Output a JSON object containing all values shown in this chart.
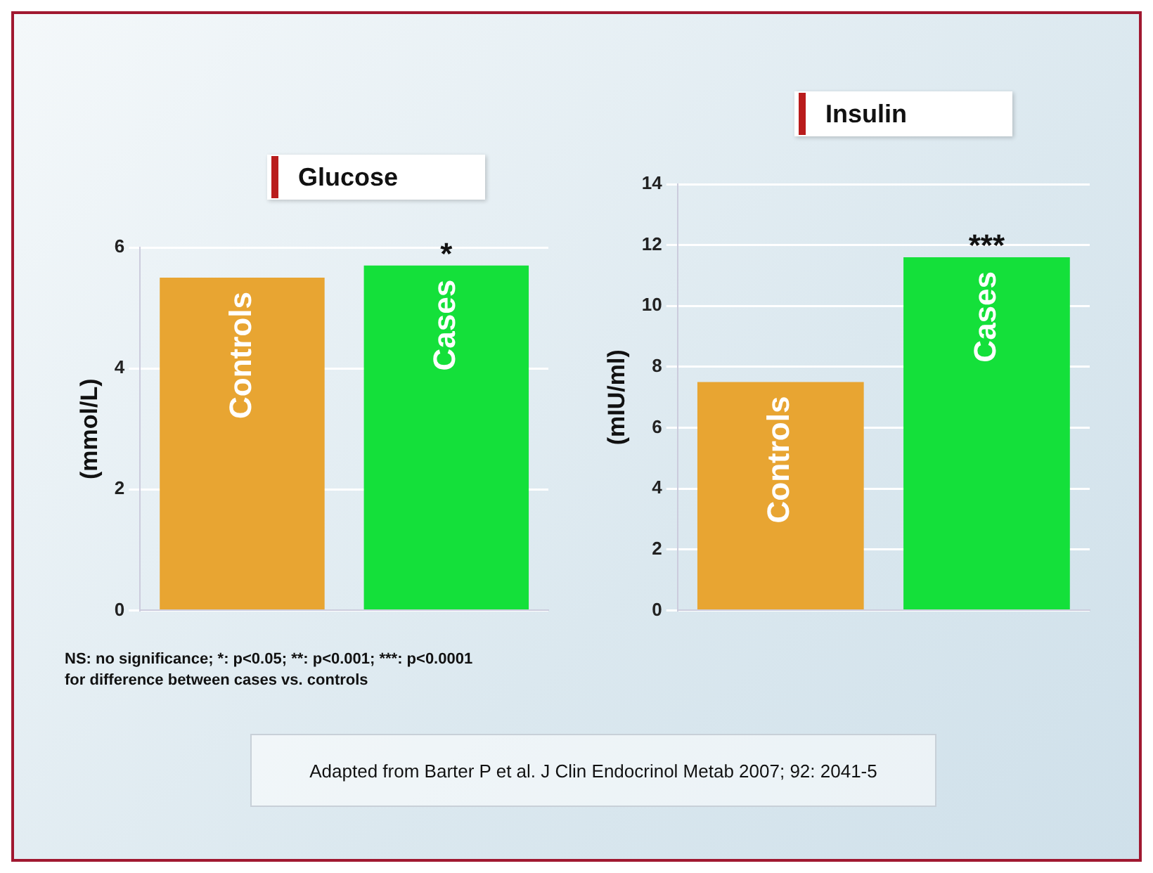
{
  "chart_data": [
    {
      "type": "bar",
      "title": "Glucose",
      "ylabel": "(mmol/L)",
      "categories": [
        "Controls",
        "Cases"
      ],
      "values": [
        5.5,
        5.7
      ],
      "colors": [
        "#e8a532",
        "#14e03a"
      ],
      "ylim": [
        0,
        6
      ],
      "yticks": [
        0,
        2,
        4,
        6
      ],
      "grid": "y",
      "tick_labels": "y",
      "annotations": [
        {
          "text": "*",
          "x": "Cases",
          "y": 5.7
        },
        "NS: no significance; *: p<0.05; **: p<0.001; ***: p<0.0001\nfor difference between cases vs. controls",
        "Adapted from Barter P et al. J Clin Endocrinol Metab 2007; 92: 2041-5"
      ]
    },
    {
      "type": "bar",
      "title": "Insulin",
      "ylabel": "(mIU/ml)",
      "categories": [
        "Controls",
        "Cases"
      ],
      "values": [
        7.5,
        11.6
      ],
      "colors": [
        "#e8a532",
        "#14e03a"
      ],
      "ylim": [
        0,
        14
      ],
      "yticks": [
        0,
        2,
        4,
        6,
        8,
        10,
        12,
        14
      ],
      "grid": "y",
      "tick_labels": "y",
      "annotations": [
        {
          "text": "***",
          "x": "Cases",
          "y": 11.6
        }
      ]
    }
  ]
}
